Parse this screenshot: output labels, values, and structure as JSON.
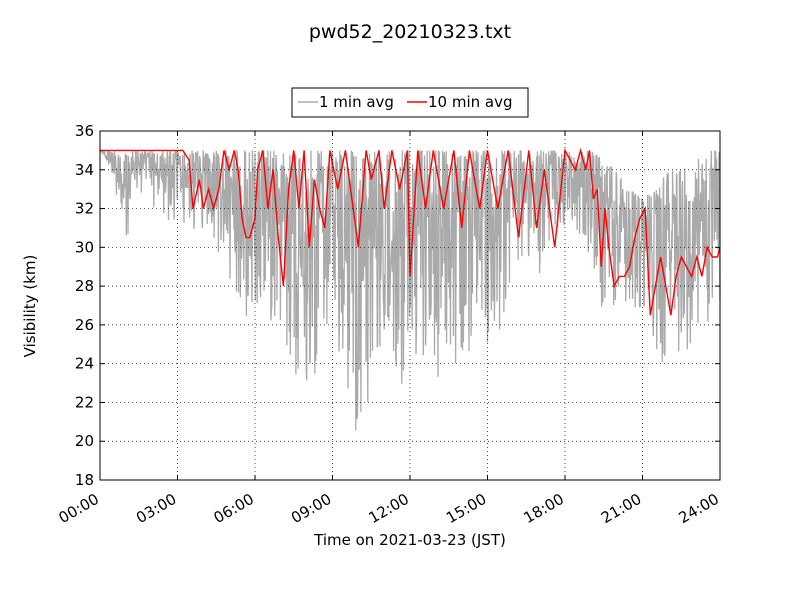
{
  "chart_data": {
    "type": "line",
    "title": "pwd52_20210323.txt",
    "xlabel": "Time on 2021-03-23 (JST)",
    "ylabel": "Visibility (km)",
    "xlim": [
      "00:00",
      "24:00"
    ],
    "ylim": [
      18,
      36
    ],
    "x_ticks": [
      "00:00",
      "03:00",
      "06:00",
      "09:00",
      "12:00",
      "15:00",
      "18:00",
      "21:00",
      "24:00"
    ],
    "y_ticks": [
      18,
      20,
      22,
      24,
      26,
      28,
      30,
      32,
      34,
      36
    ],
    "grid": true,
    "legend_position": "top-center",
    "series": [
      {
        "name": "1 min avg",
        "color": "#aaaaaa",
        "x_unit": "hours",
        "x": [
          0,
          0.5,
          1.0,
          1.5,
          2.0,
          2.5,
          3.0,
          3.5,
          4.0,
          4.5,
          5.0,
          5.5,
          6.0,
          6.5,
          7.0,
          7.5,
          8.0,
          8.5,
          9.0,
          9.5,
          10.0,
          10.5,
          11.0,
          11.5,
          12.0,
          12.5,
          13.0,
          13.5,
          14.0,
          14.5,
          15.0,
          15.5,
          16.0,
          16.5,
          17.0,
          17.5,
          18.0,
          18.5,
          19.0,
          19.5,
          20.0,
          20.5,
          21.0,
          21.5,
          22.0,
          22.5,
          23.0,
          23.5,
          24.0
        ],
        "min": [
          35,
          33.5,
          30,
          33,
          32,
          31.5,
          30.5,
          31,
          30,
          29,
          28,
          27,
          25,
          24.5,
          25,
          23,
          22,
          23.5,
          26,
          21,
          20,
          22,
          24,
          23,
          20.5,
          22,
          23,
          24,
          23,
          24,
          25,
          25,
          28,
          28.5,
          28.5,
          29,
          31,
          30.5,
          29,
          26,
          27,
          26,
          26.5,
          23.5,
          24,
          24.5,
          25,
          26,
          27
        ],
        "max": [
          35,
          35,
          35,
          35,
          35,
          35,
          35,
          35,
          35,
          35,
          35,
          35,
          35,
          35,
          35,
          35,
          35,
          35,
          35,
          35,
          35,
          35,
          35,
          35,
          35,
          35,
          35,
          35,
          35,
          35,
          35,
          35,
          35,
          35,
          35,
          35,
          35,
          35,
          35,
          34.5,
          34,
          33,
          32.5,
          33,
          34,
          34,
          34.5,
          35,
          35
        ]
      },
      {
        "name": "10 min avg",
        "color": "#ff0000",
        "x_unit": "hours",
        "x": [
          0,
          3.2,
          3.45,
          3.6,
          3.85,
          4.0,
          4.2,
          4.4,
          4.6,
          4.8,
          5.0,
          5.2,
          5.35,
          5.5,
          5.65,
          5.8,
          6.0,
          6.1,
          6.3,
          6.5,
          6.7,
          6.9,
          7.1,
          7.3,
          7.5,
          7.7,
          7.9,
          8.1,
          8.3,
          8.5,
          8.7,
          8.9,
          9.2,
          9.5,
          9.8,
          10.0,
          10.3,
          10.5,
          10.8,
          11.0,
          11.3,
          11.6,
          11.9,
          12.0,
          12.3,
          12.6,
          12.9,
          13.3,
          13.7,
          14.0,
          14.3,
          14.7,
          15.0,
          15.4,
          15.8,
          16.2,
          16.6,
          16.9,
          17.2,
          17.6,
          18.0,
          18.4,
          18.6,
          18.8,
          18.95,
          19.1,
          19.25,
          19.4,
          19.55,
          19.7,
          19.9,
          20.1,
          20.3,
          20.5,
          20.7,
          20.9,
          21.1,
          21.3,
          21.5,
          21.7,
          21.9,
          22.1,
          22.3,
          22.5,
          22.7,
          22.9,
          23.1,
          23.3,
          23.5,
          23.7,
          23.9,
          24.0
        ],
        "y": [
          35,
          35,
          34.5,
          32,
          33.5,
          32,
          33,
          32,
          33,
          35,
          34,
          35,
          34,
          31.5,
          30.5,
          30.5,
          31.5,
          34,
          35,
          32,
          34,
          30.5,
          28,
          33,
          35,
          32,
          35,
          30,
          33.5,
          32,
          31,
          35,
          33,
          35,
          32,
          30,
          35,
          33.5,
          35,
          32,
          35,
          33,
          35,
          28.5,
          35,
          32,
          35,
          32,
          35,
          31,
          35,
          32,
          35,
          32,
          35,
          30.5,
          35,
          31,
          34,
          30,
          35,
          34,
          35,
          34,
          35,
          32.5,
          33,
          29,
          32,
          30,
          28,
          28.5,
          28.5,
          29,
          30.5,
          31.5,
          32,
          26.5,
          28,
          29.5,
          28,
          26.5,
          28.5,
          29.5,
          29,
          28.5,
          29.5,
          28.5,
          30,
          29.5,
          29.5,
          30
        ]
      }
    ]
  }
}
